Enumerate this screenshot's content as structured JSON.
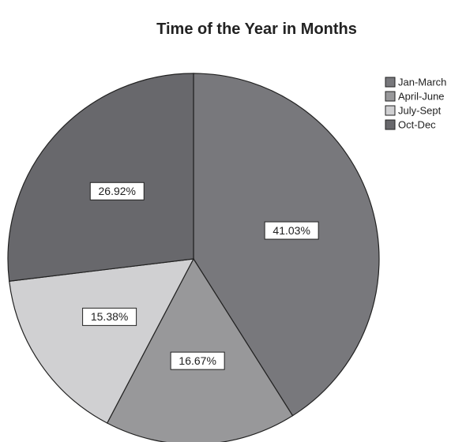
{
  "chart_data": {
    "type": "pie",
    "title": "Time of the Year in Months",
    "categories": [
      "Jan-March",
      "April-June",
      "July-Sept",
      "Oct-Dec"
    ],
    "values": [
      41.03,
      16.67,
      15.38,
      26.92
    ],
    "value_labels": [
      "41.03%",
      "16.67%",
      "15.38%",
      "26.92%"
    ],
    "colors": [
      "#78787c",
      "#98989a",
      "#d0d0d2",
      "#68686c"
    ],
    "legend": "top-right"
  }
}
